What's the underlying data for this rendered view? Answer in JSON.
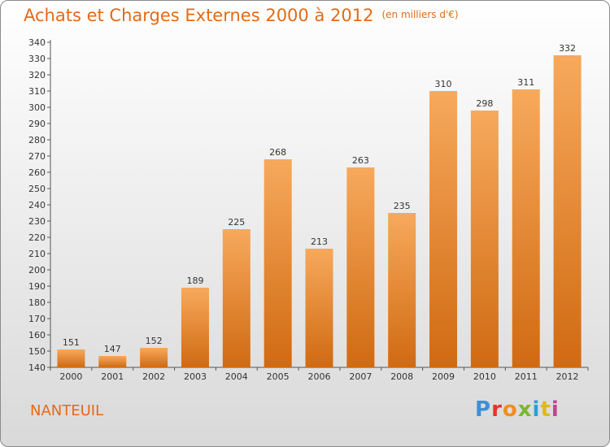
{
  "title": {
    "main": "Achats et Charges Externes 2000 à 2012",
    "unit": "(en milliers d'€)"
  },
  "commune": "NANTEUIL",
  "logo": {
    "text": "Proxiti"
  },
  "colors": {
    "accent": "#e46a16",
    "bar_top": "#f7a95c",
    "bar_bottom": "#d06a12"
  },
  "chart_data": {
    "type": "bar",
    "categories": [
      "2000",
      "2001",
      "2002",
      "2003",
      "2004",
      "2005",
      "2006",
      "2007",
      "2008",
      "2009",
      "2010",
      "2011",
      "2012"
    ],
    "values": [
      151,
      147,
      152,
      189,
      225,
      268,
      213,
      263,
      235,
      310,
      298,
      311,
      332
    ],
    "ylim": [
      140,
      340
    ],
    "ytick_step": 10,
    "grid": false,
    "xlabel": "",
    "ylabel": ""
  }
}
